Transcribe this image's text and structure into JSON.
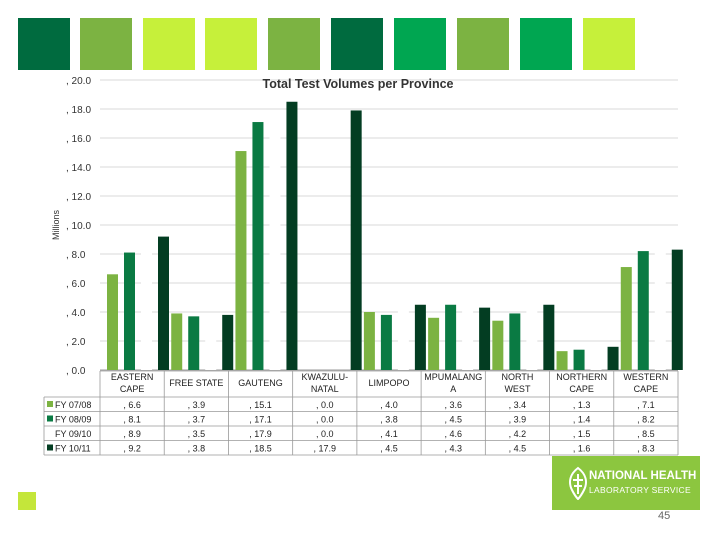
{
  "header_tiles": [
    {
      "color": "#006b3f"
    },
    {
      "color": "#7cb342"
    },
    {
      "color": "#c6f03a"
    },
    {
      "color": "#c6f03a"
    },
    {
      "color": "#7cb342"
    },
    {
      "color": "#006b3f"
    },
    {
      "color": "#00a651"
    },
    {
      "color": "#7cb342"
    },
    {
      "color": "#00a651"
    },
    {
      "color": "#c6f03a"
    }
  ],
  "chart_data": {
    "type": "bar",
    "title": "Total Test Volumes per Province",
    "ylabel": "Millions",
    "ylim": [
      0,
      20
    ],
    "yticks": [
      {
        "value": 0,
        "label": ", 0.0"
      },
      {
        "value": 2,
        "label": ", 2.0"
      },
      {
        "value": 4,
        "label": ", 4.0"
      },
      {
        "value": 6,
        "label": ", 6.0"
      },
      {
        "value": 8,
        "label": ", 8.0"
      },
      {
        "value": 10,
        "label": ", 10.0"
      },
      {
        "value": 12,
        "label": ", 12.0"
      },
      {
        "value": 14,
        "label": ", 14.0"
      },
      {
        "value": 16,
        "label": ", 16.0"
      },
      {
        "value": 18,
        "label": ", 18.0"
      },
      {
        "value": 20,
        "label": ", 20.0"
      }
    ],
    "categories": [
      [
        "EASTERN",
        "CAPE"
      ],
      [
        "FREE STATE"
      ],
      [
        "GAUTENG"
      ],
      [
        "KWAZULU-",
        "NATAL"
      ],
      [
        "LIMPOPO"
      ],
      [
        "MPUMALANG",
        "A"
      ],
      [
        "NORTH",
        "WEST"
      ],
      [
        "NORTHERN",
        "CAPE"
      ],
      [
        "WESTERN",
        "CAPE"
      ]
    ],
    "series": [
      {
        "name": "FY 07/08",
        "color": "#7cb342",
        "values": [
          6.6,
          3.9,
          15.1,
          0.0,
          4.0,
          3.6,
          3.4,
          1.3,
          7.1
        ],
        "labels": [
          ", 6.6",
          ", 3.9",
          ", 15.1",
          ", 0.0",
          ", 4.0",
          ", 3.6",
          ", 3.4",
          ", 1.3",
          ", 7.1"
        ]
      },
      {
        "name": "FY 08/09",
        "color": "#0a7a43",
        "values": [
          8.1,
          3.7,
          17.1,
          0.0,
          3.8,
          4.5,
          3.9,
          1.4,
          8.2
        ],
        "labels": [
          ", 8.1",
          ", 3.7",
          ", 17.1",
          ", 0.0",
          ", 3.8",
          ", 4.5",
          ", 3.9",
          ", 1.4",
          ", 8.2"
        ]
      },
      {
        "name": "FY 09/10",
        "color": "#ffffff",
        "values": [
          8.9,
          3.5,
          17.9,
          0.0,
          4.1,
          4.6,
          4.2,
          1.5,
          8.5
        ],
        "labels": [
          ", 8.9",
          ", 3.5",
          ", 17.9",
          ", 0.0",
          ", 4.1",
          ", 4.6",
          ", 4.2",
          ", 1.5",
          ", 8.5"
        ]
      },
      {
        "name": "FY 10/11",
        "color": "#033d22",
        "values": [
          9.2,
          3.8,
          18.5,
          17.9,
          4.5,
          4.3,
          4.5,
          1.6,
          8.3
        ],
        "labels": [
          ", 9.2",
          ", 3.8",
          ", 18.5",
          ", 17.9",
          ", 4.5",
          ", 4.3",
          ", 4.5",
          ", 1.6",
          ", 8.3"
        ]
      }
    ],
    "grid": true,
    "legend": "table-left"
  },
  "logo": {
    "line1": "NATIONAL HEALTH",
    "line2": "LABORATORY SERVICE"
  },
  "page_number": "45"
}
